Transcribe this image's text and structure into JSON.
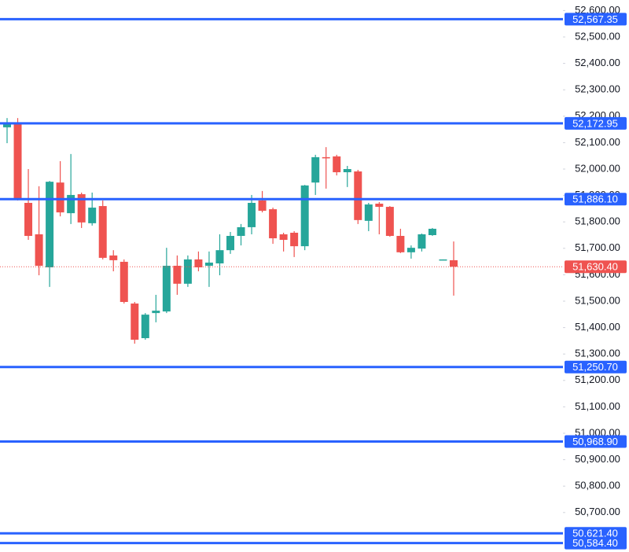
{
  "chart_data": {
    "type": "candlestick",
    "categories": [
      null,
      null,
      null,
      null,
      null,
      null,
      null,
      null,
      null,
      null,
      null,
      null,
      null,
      null,
      null,
      null,
      null,
      null,
      null,
      null,
      null,
      null,
      null,
      null,
      null,
      null,
      null,
      null,
      null,
      null,
      null,
      null,
      null,
      null,
      null,
      null,
      null,
      null,
      null,
      null,
      null,
      null,
      null
    ],
    "open": [
      52158,
      52173,
      51872,
      51753,
      51628,
      51949,
      51833,
      51905,
      51795,
      51860,
      51673,
      51649,
      51491,
      51360,
      51455,
      51461,
      51634,
      51566,
      51658,
      51634,
      51643,
      51693,
      51747,
      51780,
      51881,
      51848,
      51753,
      51759,
      51708,
      51949,
      52045,
      52048,
      51988,
      51991,
      51804,
      51869,
      51857,
      51747,
      51685,
      51699,
      51750,
      51655,
      51655
    ],
    "high": [
      52193,
      52193,
      52000,
      51935,
      51955,
      52030,
      52057,
      51911,
      51911,
      51881,
      51693,
      51658,
      51497,
      51455,
      51524,
      51702,
      51673,
      51673,
      51688,
      51688,
      51753,
      51762,
      51792,
      51902,
      51917,
      51854,
      51759,
      51765,
      51940,
      52054,
      52083,
      52054,
      52012,
      51997,
      51872,
      51875,
      51860,
      51774,
      51711,
      51756,
      51777,
      51658,
      51726
    ],
    "low": [
      52098,
      51881,
      51732,
      51598,
      51554,
      51821,
      51792,
      51777,
      51786,
      51658,
      51613,
      51491,
      51339,
      51354,
      51420,
      51455,
      51524,
      51554,
      51613,
      51554,
      51598,
      51679,
      51711,
      51753,
      51836,
      51717,
      51688,
      51667,
      51693,
      51902,
      51926,
      51976,
      51932,
      51792,
      51765,
      51753,
      51744,
      51682,
      51661,
      51688,
      51747,
      51655,
      51521
    ],
    "close": [
      52176,
      51887,
      51747,
      51634,
      51952,
      51836,
      51902,
      51798,
      51854,
      51664,
      51655,
      51497,
      51354,
      51449,
      51464,
      51634,
      51566,
      51658,
      51628,
      51646,
      51693,
      51747,
      51780,
      51872,
      51842,
      51738,
      51732,
      51708,
      51938,
      52045,
      52042,
      51988,
      52000,
      51807,
      51866,
      51857,
      51747,
      51685,
      51702,
      51753,
      51774,
      51658,
      51630.4
    ],
    "up_color": "#26a69a",
    "down_color": "#ef5350",
    "level_color": "#2962ff",
    "ylim": [
      50550.6,
      52639.9
    ],
    "yticks": [
      {
        "value": 52600,
        "label": "52,600.00"
      },
      {
        "value": 52500,
        "label": "52,500.00"
      },
      {
        "value": 52400,
        "label": "52,400.00"
      },
      {
        "value": 52300,
        "label": "52,300.00"
      },
      {
        "value": 52200,
        "label": "52,200.00"
      },
      {
        "value": 52100,
        "label": "52,100.00"
      },
      {
        "value": 52000,
        "label": "52,000.00"
      },
      {
        "value": 51900,
        "label": "51,900.00"
      },
      {
        "value": 51800,
        "label": "51,800.00"
      },
      {
        "value": 51700,
        "label": "51,700.00"
      },
      {
        "value": 51600,
        "label": "51,600.00"
      },
      {
        "value": 51500,
        "label": "51,500.00"
      },
      {
        "value": 51400,
        "label": "51,400.00"
      },
      {
        "value": 51300,
        "label": "51,300.00"
      },
      {
        "value": 51200,
        "label": "51,200.00"
      },
      {
        "value": 51100,
        "label": "51,100.00"
      },
      {
        "value": 51000,
        "label": "51,000.00"
      },
      {
        "value": 50900,
        "label": "50,900.00"
      },
      {
        "value": 50800,
        "label": "50,800.00"
      },
      {
        "value": 50700,
        "label": "50,700.00"
      }
    ],
    "levels": [
      {
        "value": 52567.35,
        "label": "52,567.35"
      },
      {
        "value": 52172.95,
        "label": "52,172.95"
      },
      {
        "value": 51886.1,
        "label": "51,886.10"
      },
      {
        "value": 51250.7,
        "label": "51,250.70"
      },
      {
        "value": 50968.9,
        "label": "50,968.90"
      },
      {
        "value": 50621.4,
        "label": "50,621.40"
      },
      {
        "value": 50584.4,
        "label": "50,584.40"
      }
    ],
    "last_price": {
      "value": 51630.4,
      "label": "51,630.40"
    }
  }
}
